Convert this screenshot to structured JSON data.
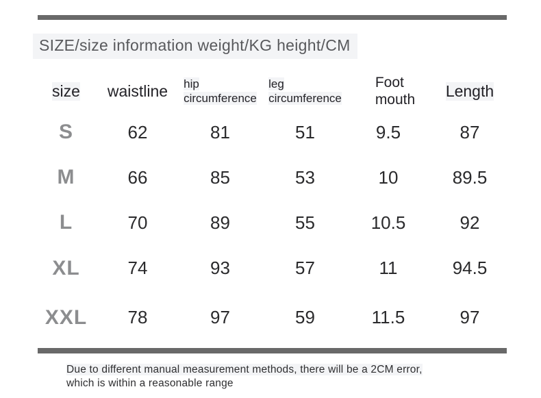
{
  "title": "SIZE/size information weight/KG height/CM",
  "colors": {
    "bar": "#696969",
    "highlight": "#f3f4f6",
    "size-label": "#8c8d8f",
    "heading": "#232227",
    "number": "#2a2a2c",
    "title-text": "#58595c",
    "note-text": "#2e2e30"
  },
  "table": {
    "headers": [
      {
        "lines": [
          "size"
        ]
      },
      {
        "lines": [
          "waistline"
        ]
      },
      {
        "lines": [
          "hip",
          "circumference"
        ]
      },
      {
        "lines": [
          "leg",
          "circumference"
        ]
      },
      {
        "lines": [
          "Foot",
          "mouth"
        ]
      },
      {
        "lines": [
          "Length"
        ]
      }
    ],
    "rows": [
      {
        "size": "S",
        "values": [
          "62",
          "81",
          "51",
          "9.5",
          "87"
        ]
      },
      {
        "size": "M",
        "values": [
          "66",
          "85",
          "53",
          "10",
          "89.5"
        ]
      },
      {
        "size": "L",
        "values": [
          "70",
          "89",
          "55",
          "10.5",
          "92"
        ]
      },
      {
        "size": "XL",
        "values": [
          "74",
          "93",
          "57",
          "11",
          "94.5"
        ]
      },
      {
        "size": "XXL",
        "values": [
          "78",
          "97",
          "59",
          "11.5",
          "97"
        ]
      }
    ]
  },
  "note": {
    "line1": "Due to different manual measurement methods, there will be a 2CM error,",
    "line2": "which is within a reasonable range"
  },
  "chart_data": {
    "type": "table",
    "title": "SIZE/size information weight/KG height/CM",
    "units": "weight/KG height/CM",
    "columns": [
      "size",
      "waistline",
      "hip circumference",
      "leg circumference",
      "Foot mouth",
      "Length"
    ],
    "rows": [
      [
        "S",
        62,
        81,
        51,
        9.5,
        87
      ],
      [
        "M",
        66,
        85,
        53,
        10,
        89.5
      ],
      [
        "L",
        70,
        89,
        55,
        10.5,
        92
      ],
      [
        "XL",
        74,
        93,
        57,
        11,
        94.5
      ],
      [
        "XXL",
        78,
        97,
        59,
        11.5,
        97
      ]
    ],
    "note": "Due to different manual measurement methods, there will be a 2CM error, which is within a reasonable range"
  }
}
